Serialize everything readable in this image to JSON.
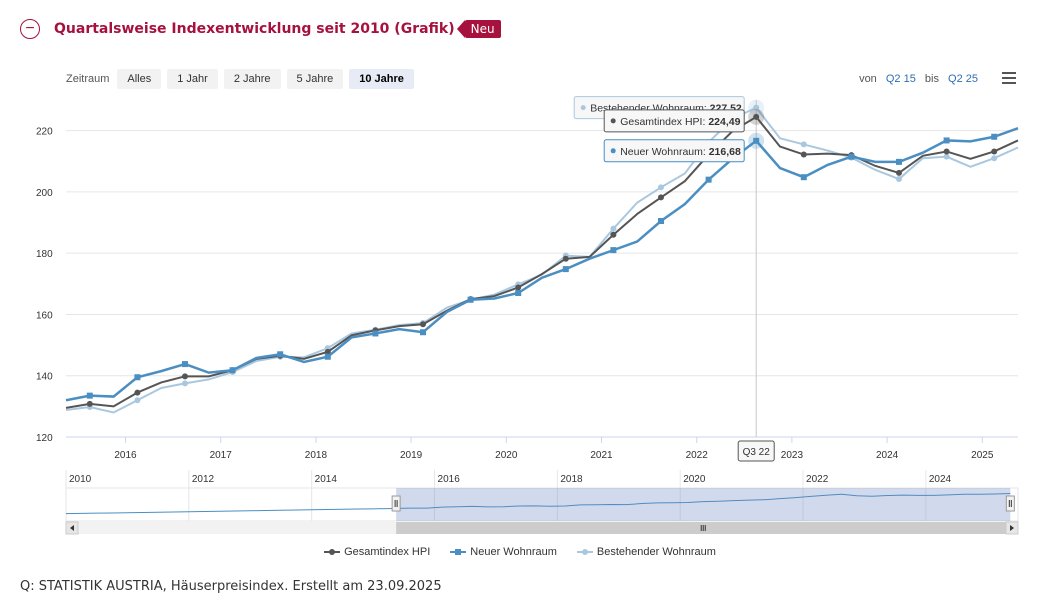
{
  "header": {
    "title": "Quartalsweise Indexentwicklung seit 2010 (Grafik)",
    "badge": "Neu"
  },
  "toolbar": {
    "label": "Zeitraum",
    "buttons": [
      "Alles",
      "1 Jahr",
      "2 Jahre",
      "5 Jahre",
      "10 Jahre"
    ],
    "active": "10 Jahre",
    "from_label": "von",
    "from_value": "Q2 15",
    "to_label": "bis",
    "to_value": "Q2 25"
  },
  "source": "Q: STATISTIK AUSTRIA, Häuserpreisindex. Erstellt am 23.09.2025",
  "colors": {
    "gesamt": "#555555",
    "neu": "#4a8ec2",
    "bestehend": "#a9c8e0",
    "accent": "#a6123d"
  },
  "chart_data": {
    "type": "line",
    "title": "",
    "xlabel": "",
    "ylabel": "",
    "ylim": [
      120,
      230
    ],
    "yticks": [
      120,
      140,
      160,
      180,
      200,
      220
    ],
    "x_start": 2015.375,
    "x_end": 2025.375,
    "x_step": 0.25,
    "xticks": [
      "2016",
      "2017",
      "2018",
      "2019",
      "2020",
      "2021",
      "2022",
      "2023",
      "2024",
      "2025"
    ],
    "series": [
      {
        "name": "Gesamtindex HPI",
        "marker": "circle",
        "values": [
          129.5,
          130.8,
          130.0,
          134.5,
          137.8,
          139.8,
          139.8,
          141.8,
          145.5,
          146.5,
          145.5,
          147.8,
          153.2,
          154.8,
          156.2,
          156.8,
          161.2,
          165.0,
          166.0,
          168.8,
          173.2,
          178.2,
          178.8,
          186.0,
          192.8,
          198.2,
          203.5,
          212.2,
          219.8,
          224.49,
          214.8,
          212.2,
          212.5,
          212.0,
          208.5,
          206.2,
          211.8,
          213.2,
          210.8,
          213.2,
          216.8
        ]
      },
      {
        "name": "Neuer Wohnraum",
        "marker": "square",
        "values": [
          132.0,
          133.5,
          133.2,
          139.5,
          141.5,
          143.8,
          141.0,
          141.8,
          145.8,
          147.0,
          144.5,
          146.2,
          152.5,
          153.8,
          155.2,
          154.2,
          160.8,
          164.8,
          165.2,
          167.0,
          172.0,
          174.8,
          178.2,
          181.0,
          183.8,
          190.5,
          196.0,
          204.0,
          210.8,
          216.68,
          207.8,
          204.8,
          208.8,
          211.5,
          209.8,
          209.8,
          212.8,
          216.8,
          216.5,
          218.0,
          220.8
        ]
      },
      {
        "name": "Bestehender Wohnraum",
        "marker": "circle",
        "values": [
          128.8,
          129.8,
          128.0,
          132.0,
          136.0,
          137.5,
          138.8,
          141.2,
          144.8,
          146.2,
          146.0,
          149.0,
          153.8,
          155.0,
          156.5,
          157.2,
          162.2,
          164.8,
          166.5,
          169.8,
          173.0,
          179.2,
          178.8,
          188.0,
          196.5,
          201.5,
          206.0,
          216.2,
          223.8,
          227.52,
          217.5,
          215.5,
          213.5,
          211.2,
          207.2,
          204.2,
          211.0,
          211.5,
          208.2,
          211.0,
          214.5
        ]
      }
    ],
    "tooltip": {
      "category": "Q3 22",
      "index": 29,
      "rows": [
        {
          "label": "Bestehender Wohnraum:",
          "value": "227,52"
        },
        {
          "label": "Gesamtindex HPI:",
          "value": "224,49"
        },
        {
          "label": "Neuer Wohnraum:",
          "value": "216,68"
        }
      ]
    },
    "navigator": {
      "xticks": [
        "2010",
        "2012",
        "2014",
        "2016",
        "2018",
        "2020",
        "2022",
        "2024"
      ],
      "x_start": 2010.0,
      "x_end": 2025.5,
      "selected": [
        2015.375,
        2025.375
      ]
    },
    "legend": [
      "Gesamtindex HPI",
      "Neuer Wohnraum",
      "Bestehender Wohnraum"
    ]
  }
}
